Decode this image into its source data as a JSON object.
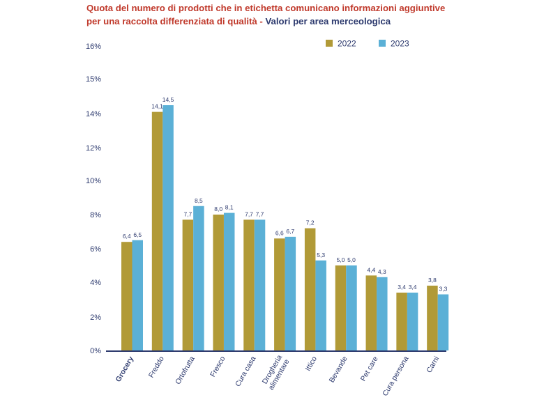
{
  "title": {
    "line1": "Quota del numero di prodotti che in etichetta comunicano informazioni aggiuntive",
    "line2_red": "per una raccolta differenziata di qualità - ",
    "line2_navy": "Valori per area merceologica"
  },
  "colors": {
    "s2022": "#b19a37",
    "s2023": "#5bb0d6",
    "text": "#2d3a6e",
    "title_red": "#c0392b",
    "axis": "#2d3a6e"
  },
  "chart_data": {
    "type": "bar",
    "categories": [
      "Grocery",
      "Freddo",
      "Ortofrutta",
      "Fresco",
      "Cura casa",
      "Drogheria alimentare",
      "Ittico",
      "Bevande",
      "Pet care",
      "Cura persona",
      "Carni"
    ],
    "category_lines": [
      [
        "Grocery"
      ],
      [
        "Freddo"
      ],
      [
        "Ortofrutta"
      ],
      [
        "Fresco"
      ],
      [
        "Cura casa"
      ],
      [
        "Drogheria",
        "alimentare"
      ],
      [
        "Ittico"
      ],
      [
        "Bevande"
      ],
      [
        "Pet care"
      ],
      [
        "Cura persona"
      ],
      [
        "Carni"
      ]
    ],
    "bold_category": "Grocery",
    "series": [
      {
        "name": "2022",
        "values": [
          6.4,
          14.1,
          7.7,
          8.0,
          7.7,
          6.6,
          7.2,
          5.0,
          4.4,
          3.4,
          3.8
        ],
        "labels": [
          "6,4",
          "14,1",
          "7,7",
          "8,0",
          "7,7",
          "6,6",
          "7,2",
          "5,0",
          "4,4",
          "3,4",
          "3,8"
        ]
      },
      {
        "name": "2023",
        "values": [
          6.5,
          14.5,
          8.5,
          8.1,
          7.7,
          6.7,
          5.3,
          5.0,
          4.3,
          3.4,
          3.3
        ],
        "labels": [
          "6,5",
          "14,5",
          "8,5",
          "8,1",
          "7,7",
          "6,7",
          "5,3",
          "5,0",
          "4,3",
          "3,4",
          "3,3"
        ]
      }
    ],
    "y_ticks": [
      0,
      2,
      4,
      6,
      8,
      10,
      12,
      14,
      15,
      16
    ],
    "y_tick_labels": [
      "0%",
      "2%",
      "4%",
      "6%",
      "8%",
      "10%",
      "12%",
      "14%",
      "15%",
      "16%"
    ],
    "ylim": [
      0,
      16
    ],
    "grid": false,
    "legend_position": "top-right"
  }
}
